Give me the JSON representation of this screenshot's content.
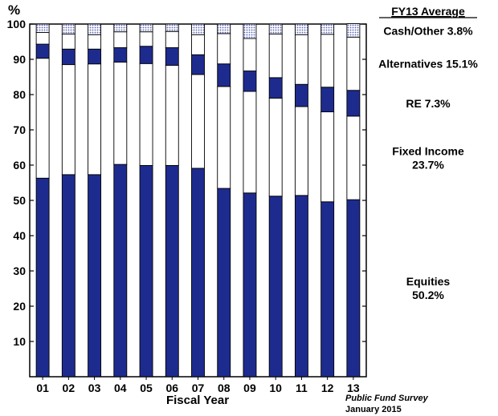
{
  "chart_data": {
    "type": "stacked-bar",
    "ylabel": "%",
    "xlabel": "Fiscal Year",
    "ylim": [
      0,
      100
    ],
    "yticks": [
      10,
      20,
      30,
      40,
      50,
      60,
      70,
      80,
      90,
      100
    ],
    "categories": [
      "01",
      "02",
      "03",
      "04",
      "05",
      "06",
      "07",
      "08",
      "09",
      "10",
      "11",
      "12",
      "13"
    ],
    "series": [
      {
        "name": "Equities",
        "color": "#1e2b8e",
        "pattern": "solid",
        "values": [
          56.3,
          57.3,
          57.3,
          60.2,
          59.9,
          59.9,
          59.1,
          53.4,
          52.1,
          51.2,
          51.4,
          49.6,
          50.2
        ]
      },
      {
        "name": "Fixed Income",
        "color": "#ffffff",
        "pattern": "solid",
        "values": [
          34.0,
          31.2,
          31.4,
          29.0,
          28.9,
          28.4,
          26.6,
          28.9,
          28.8,
          27.8,
          25.2,
          25.5,
          23.7
        ]
      },
      {
        "name": "RE",
        "color": "#1e2b8e",
        "pattern": "solid",
        "values": [
          4.0,
          4.4,
          4.2,
          4.1,
          4.9,
          5.0,
          5.6,
          6.4,
          5.8,
          5.8,
          6.3,
          7.0,
          7.3
        ]
      },
      {
        "name": "Alternatives",
        "color": "#ffffff",
        "pattern": "solid",
        "values": [
          3.3,
          4.3,
          4.1,
          4.5,
          4.1,
          4.6,
          5.7,
          8.6,
          9.2,
          12.4,
          14.1,
          15.0,
          15.1
        ]
      },
      {
        "name": "Cash/Other",
        "color": "#c9ccea",
        "pattern": "dots",
        "values": [
          2.4,
          2.8,
          3.0,
          2.2,
          2.2,
          2.1,
          3.0,
          2.7,
          4.1,
          2.8,
          3.0,
          2.9,
          3.8
        ]
      }
    ],
    "legend": {
      "title": "FY13 Average",
      "entries": [
        {
          "lines": [
            "Cash/Other 3.8%"
          ],
          "value": 98.1
        },
        {
          "lines": [
            "Alternatives 15.1%"
          ],
          "value": 88.7
        },
        {
          "lines": [
            "RE 7.3%"
          ],
          "value": 77.5
        },
        {
          "lines": [
            "Fixed Income",
            "23.7%"
          ],
          "value": 62.1
        },
        {
          "lines": [
            "Equities",
            "50.2%"
          ],
          "value": 25.1
        }
      ]
    },
    "source": {
      "line1": "Public Fund Survey",
      "line2": "January 2015"
    }
  }
}
